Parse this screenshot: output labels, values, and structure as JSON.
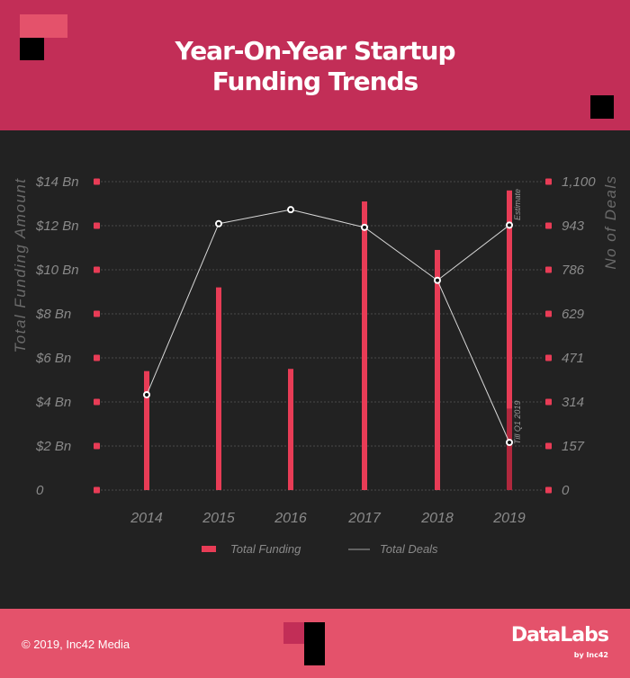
{
  "header": {
    "title_line1": "Year-On-Year Startup",
    "title_line2": "Funding Trends"
  },
  "footer": {
    "copyright": "© 2019, Inc42 Media",
    "brand": "DataLabs",
    "brand_sub": "by Inc42"
  },
  "colors": {
    "header_bg": "#c22e57",
    "footer_bg": "#e4526b",
    "chart_bg": "#222222",
    "bar": "#e83c56",
    "bar_partial": "#b0283d",
    "line": "#d8d8d8",
    "axis_text": "#8a8a8a"
  },
  "chart_data": {
    "type": "bar",
    "title": "Year-On-Year Startup Funding Trends",
    "categories": [
      "2014",
      "2015",
      "2016",
      "2017",
      "2018",
      "2019"
    ],
    "series": [
      {
        "name": "Total Funding",
        "type": "bar",
        "axis": "left",
        "unit": "$ Bn",
        "values": [
          5.4,
          9.2,
          5.5,
          13.1,
          10.9,
          13.6
        ],
        "partial_values": [
          null,
          null,
          null,
          null,
          null,
          3.7
        ],
        "notes": {
          "2019": "Estimate (light bar); dark segment = Till Q1 2019"
        }
      },
      {
        "name": "Total Deals",
        "type": "line",
        "axis": "right",
        "values": [
          340,
          950,
          1000,
          937,
          748,
          170
        ],
        "estimate_point": {
          "category": "2019",
          "value": 945,
          "label": "Estimate"
        },
        "partial_label": "Till Q1 2019"
      }
    ],
    "ylabel": "Total Funding Amount",
    "ylabel_right": "No of Deals",
    "xlabel": "",
    "ylim": [
      0,
      14
    ],
    "ylim_right": [
      0,
      1100
    ],
    "yticks": [
      "0",
      "$2 Bn",
      "$4 Bn",
      "$6 Bn",
      "$8 Bn",
      "$10 Bn",
      "$12 Bn",
      "$14 Bn"
    ],
    "yticks_right": [
      "0",
      "157",
      "314",
      "471",
      "629",
      "786",
      "943",
      "1,100"
    ],
    "grid": true,
    "legend_position": "bottom",
    "legend": [
      "Total Funding",
      "Total Deals"
    ]
  }
}
